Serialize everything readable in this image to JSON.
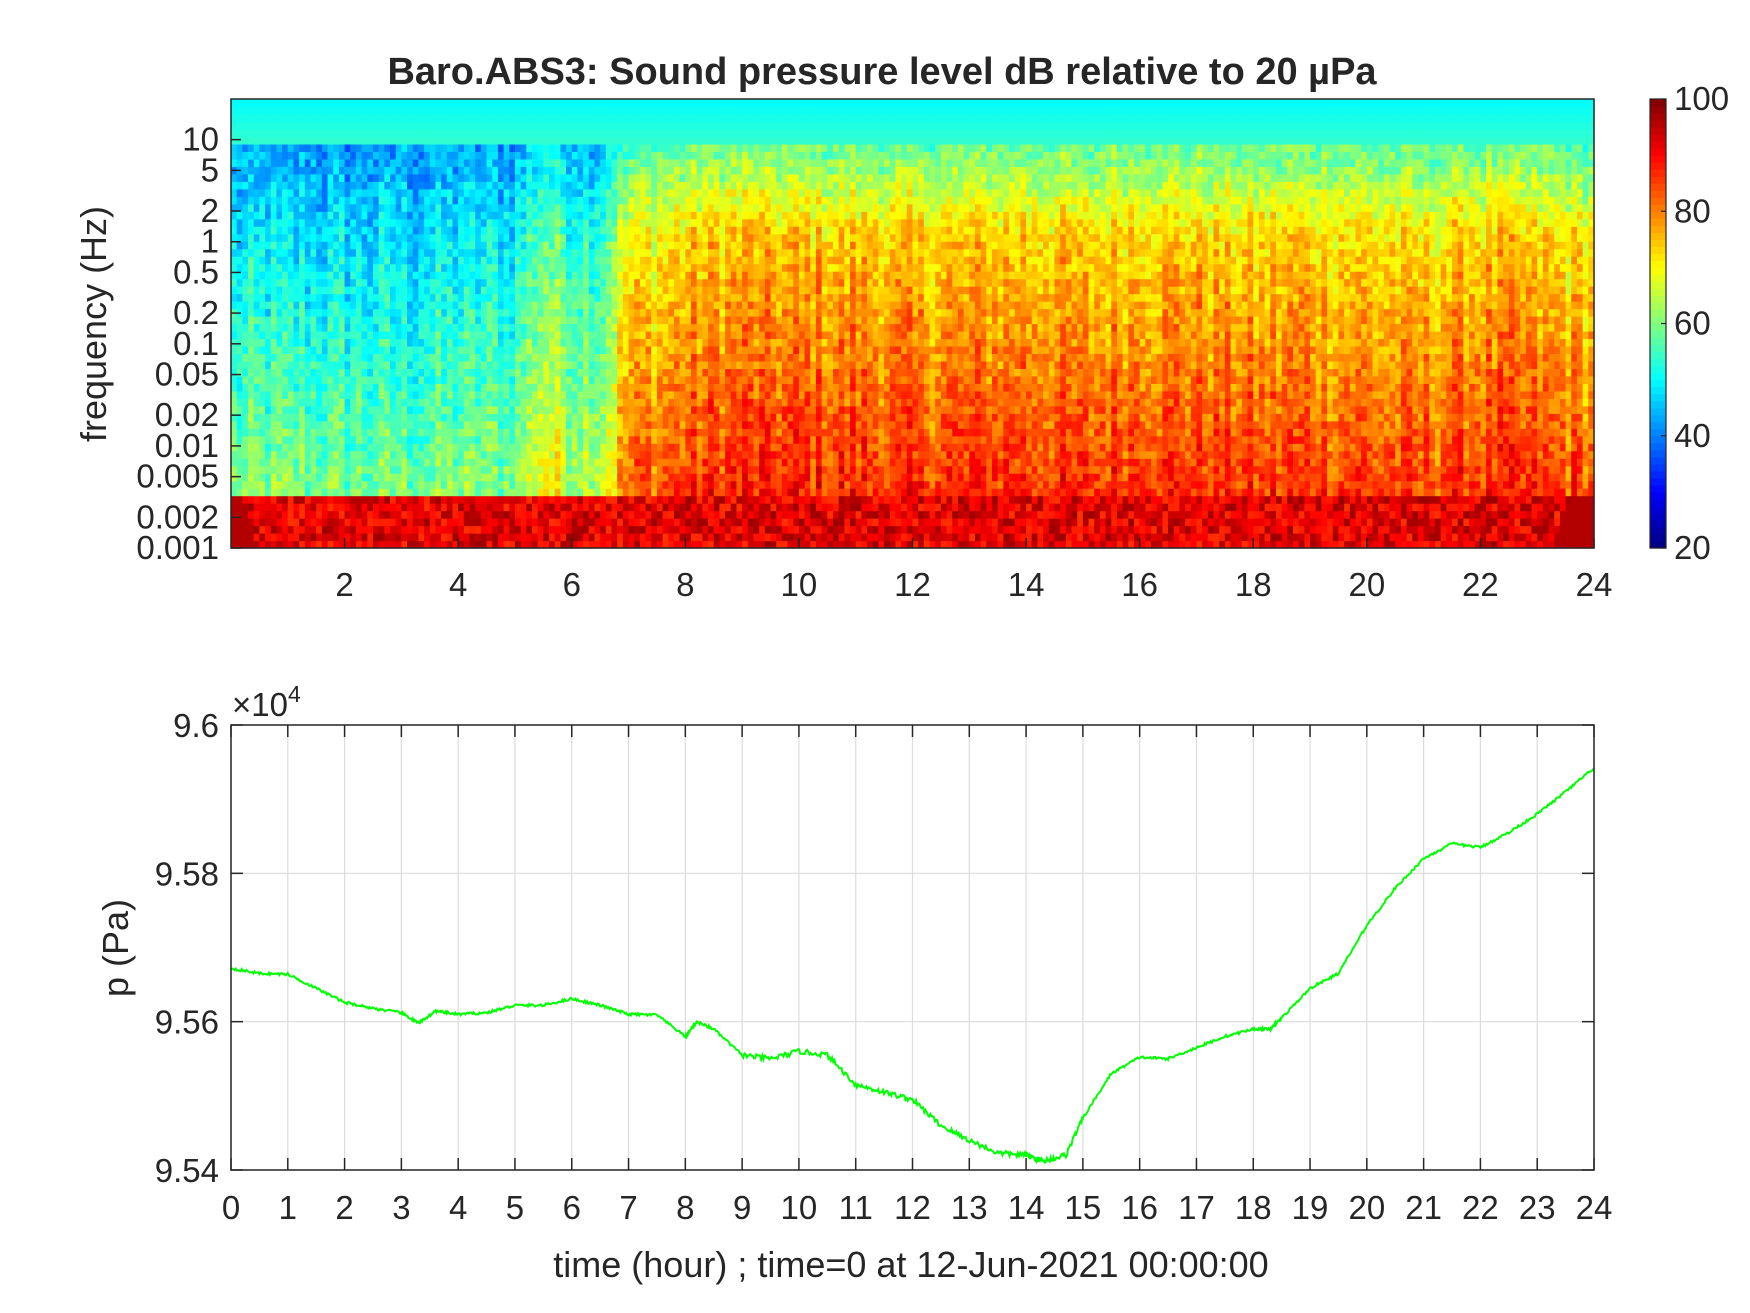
{
  "chart_data": [
    {
      "type": "heatmap",
      "title": "Baro.ABS3: Sound pressure level dB relative to 20 µPa",
      "ylabel": "frequency (Hz)",
      "xlabel": "",
      "y_scale": "log",
      "xlim": [
        0,
        24
      ],
      "ylim": [
        0.001,
        25
      ],
      "x_ticks": [
        2,
        4,
        6,
        8,
        10,
        12,
        14,
        16,
        18,
        20,
        22,
        24
      ],
      "y_tick_labels": [
        "10",
        "5",
        "2",
        "1",
        "0.5",
        "0.2",
        "0.1",
        "0.05",
        "0.02",
        "0.01",
        "0.005",
        "0.002",
        "0.001"
      ],
      "y_tick_values": [
        10,
        5,
        2,
        1,
        0.5,
        0.2,
        0.1,
        0.05,
        0.02,
        0.01,
        0.005,
        0.002,
        0.001
      ],
      "colormap": "jet",
      "colorbar": {
        "min": 20,
        "max": 100,
        "ticks": [
          20,
          40,
          60,
          80,
          100
        ]
      },
      "level_profile_db": {
        "description_hours": [
          0,
          1,
          2,
          3,
          4,
          5,
          5.5,
          6,
          6.5,
          7,
          8,
          9,
          10,
          11,
          12,
          13,
          14,
          15,
          16,
          17,
          18,
          19,
          20,
          21,
          22,
          23,
          24
        ],
        "activity": [
          0.12,
          0.12,
          0.1,
          0.1,
          0.12,
          0.15,
          0.45,
          0.3,
          0.3,
          0.75,
          0.85,
          0.92,
          0.9,
          0.9,
          0.88,
          0.88,
          0.9,
          0.85,
          0.92,
          0.88,
          0.85,
          0.88,
          0.85,
          0.82,
          0.9,
          0.85,
          0.8
        ]
      }
    },
    {
      "type": "line",
      "xlabel": "time (hour) ; time=0 at 12-Jun-2021 00:00:00",
      "ylabel": "p (Pa)",
      "y_multiplier_label": "×10",
      "y_multiplier_exp": "4",
      "xlim": [
        0,
        24
      ],
      "ylim": [
        9.54,
        9.6
      ],
      "y_ticks": [
        "9.54",
        "9.56",
        "9.58",
        "9.6"
      ],
      "y_tick_values": [
        9.54,
        9.56,
        9.58,
        9.6
      ],
      "x_ticks": [
        0,
        1,
        2,
        3,
        4,
        5,
        6,
        7,
        8,
        9,
        10,
        11,
        12,
        13,
        14,
        15,
        16,
        17,
        18,
        19,
        20,
        21,
        22,
        23,
        24
      ],
      "grid": true,
      "series": [
        {
          "color": "#00ff00",
          "x": [
            0,
            0.5,
            1,
            1.5,
            2,
            2.5,
            3,
            3.3,
            3.6,
            4,
            4.5,
            5,
            5.5,
            6,
            6.5,
            7,
            7.5,
            8,
            8.2,
            8.5,
            9,
            9.5,
            10,
            10.5,
            11,
            11.5,
            12,
            12.5,
            13,
            13.5,
            14,
            14.3,
            14.7,
            15,
            15.5,
            16,
            16.5,
            17,
            17.5,
            18,
            18.3,
            18.5,
            19,
            19.5,
            20,
            20.5,
            21,
            21.5,
            22,
            22.5,
            23,
            23.5,
            24
          ],
          "y": [
            9.5672,
            9.5665,
            9.5664,
            9.5645,
            9.5626,
            9.5618,
            9.5612,
            9.5598,
            9.5614,
            9.561,
            9.5612,
            9.5622,
            9.5622,
            9.5631,
            9.5622,
            9.561,
            9.5609,
            9.558,
            9.56,
            9.559,
            9.5555,
            9.555,
            9.556,
            9.5555,
            9.5515,
            9.5505,
            9.5495,
            9.546,
            9.544,
            9.5423,
            9.542,
            9.5412,
            9.542,
            9.547,
            9.553,
            9.5552,
            9.555,
            9.5565,
            9.558,
            9.559,
            9.559,
            9.5605,
            9.5645,
            9.5665,
            9.573,
            9.578,
            9.582,
            9.584,
            9.5835,
            9.5855,
            9.588,
            9.591,
            9.5942
          ]
        }
      ]
    }
  ]
}
